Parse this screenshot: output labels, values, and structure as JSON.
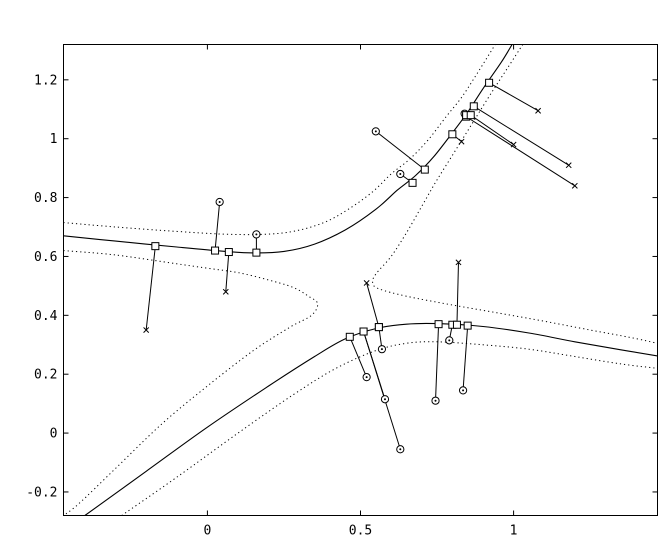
{
  "chart_data": {
    "type": "scatter",
    "title": "",
    "xlabel": "",
    "ylabel": "",
    "xlim": [
      -0.47,
      1.47
    ],
    "ylim": [
      -0.28,
      1.32
    ],
    "xticks": [
      0,
      0.5,
      1
    ],
    "xtick_labels": [
      "0",
      "0.5",
      "1"
    ],
    "yticks": [
      -0.2,
      0,
      0.2,
      0.4,
      0.6,
      0.8,
      1,
      1.2
    ],
    "ytick_labels": [
      "-0.2",
      "0",
      "0.2",
      "0.4",
      "0.6",
      "0.8",
      "1",
      "1.2"
    ],
    "grid": false,
    "curves": {
      "upper": [
        [
          -0.47,
          0.67
        ],
        [
          -0.3,
          0.652
        ],
        [
          -0.1,
          0.632
        ],
        [
          0.05,
          0.618
        ],
        [
          0.15,
          0.612
        ],
        [
          0.25,
          0.617
        ],
        [
          0.35,
          0.642
        ],
        [
          0.45,
          0.69
        ],
        [
          0.55,
          0.76
        ],
        [
          0.62,
          0.825
        ],
        [
          0.68,
          0.875
        ],
        [
          0.74,
          0.94
        ],
        [
          0.8,
          1.02
        ],
        [
          0.85,
          1.09
        ],
        [
          0.9,
          1.17
        ],
        [
          0.96,
          1.26
        ],
        [
          0.995,
          1.32
        ]
      ],
      "lower": [
        [
          -0.4,
          -0.28
        ],
        [
          -0.2,
          -0.13
        ],
        [
          0.0,
          0.02
        ],
        [
          0.2,
          0.16
        ],
        [
          0.35,
          0.26
        ],
        [
          0.45,
          0.32
        ],
        [
          0.55,
          0.355
        ],
        [
          0.65,
          0.37
        ],
        [
          0.75,
          0.372
        ],
        [
          0.9,
          0.362
        ],
        [
          1.05,
          0.34
        ],
        [
          1.2,
          0.31
        ],
        [
          1.35,
          0.283
        ],
        [
          1.47,
          0.262
        ]
      ],
      "bound_upper_outer": [
        [
          -0.47,
          0.715
        ],
        [
          -0.3,
          0.7
        ],
        [
          -0.1,
          0.685
        ],
        [
          0.05,
          0.676
        ],
        [
          0.18,
          0.675
        ],
        [
          0.28,
          0.685
        ],
        [
          0.38,
          0.715
        ],
        [
          0.46,
          0.76
        ],
        [
          0.54,
          0.82
        ],
        [
          0.6,
          0.88
        ],
        [
          0.66,
          0.93
        ],
        [
          0.72,
          0.995
        ],
        [
          0.78,
          1.075
        ],
        [
          0.83,
          1.14
        ],
        [
          0.88,
          1.22
        ],
        [
          0.94,
          1.32
        ]
      ],
      "bound_upper_inner": [
        [
          -0.47,
          0.62
        ],
        [
          -0.3,
          0.605
        ],
        [
          -0.1,
          0.575
        ],
        [
          0.0,
          0.56
        ],
        [
          0.1,
          0.545
        ],
        [
          0.2,
          0.52
        ],
        [
          0.28,
          0.495
        ],
        [
          0.33,
          0.465
        ],
        [
          0.36,
          0.44
        ],
        [
          0.34,
          0.4
        ],
        [
          0.27,
          0.36
        ],
        [
          0.15,
          0.28
        ],
        [
          0.0,
          0.16
        ],
        [
          -0.15,
          0.03
        ],
        [
          -0.3,
          -0.12
        ],
        [
          -0.42,
          -0.24
        ],
        [
          -0.47,
          -0.28
        ]
      ],
      "bound_right_inner": [
        [
          1.03,
          1.32
        ],
        [
          0.98,
          1.24
        ],
        [
          0.93,
          1.16
        ],
        [
          0.87,
          1.06
        ],
        [
          0.81,
          0.96
        ],
        [
          0.75,
          0.86
        ],
        [
          0.7,
          0.77
        ],
        [
          0.65,
          0.68
        ],
        [
          0.6,
          0.6
        ],
        [
          0.55,
          0.54
        ],
        [
          0.54,
          0.51
        ],
        [
          0.56,
          0.49
        ],
        [
          0.65,
          0.465
        ],
        [
          0.8,
          0.435
        ],
        [
          0.95,
          0.408
        ],
        [
          1.1,
          0.38
        ],
        [
          1.25,
          0.35
        ],
        [
          1.38,
          0.325
        ],
        [
          1.47,
          0.305
        ]
      ],
      "bound_lower_outer": [
        [
          -0.28,
          -0.28
        ],
        [
          -0.1,
          -0.15
        ],
        [
          0.1,
          0.0
        ],
        [
          0.28,
          0.13
        ],
        [
          0.42,
          0.22
        ],
        [
          0.55,
          0.28
        ],
        [
          0.65,
          0.305
        ],
        [
          0.75,
          0.31
        ],
        [
          0.9,
          0.3
        ],
        [
          1.05,
          0.285
        ],
        [
          1.2,
          0.26
        ],
        [
          1.35,
          0.235
        ],
        [
          1.47,
          0.22
        ]
      ]
    },
    "pairs": [
      {
        "fit": [
          -0.17,
          0.635
        ],
        "obs": [
          -0.2,
          0.35
        ],
        "marker": "x"
      },
      {
        "fit": [
          0.025,
          0.62
        ],
        "obs": [
          0.04,
          0.785
        ],
        "marker": "o"
      },
      {
        "fit": [
          0.07,
          0.615
        ],
        "obs": [
          0.06,
          0.48
        ],
        "marker": "x"
      },
      {
        "fit": [
          0.16,
          0.613
        ],
        "obs": [
          0.16,
          0.675
        ],
        "marker": "o"
      },
      {
        "fit": [
          0.67,
          0.85
        ],
        "obs": [
          0.63,
          0.88
        ],
        "marker": "o"
      },
      {
        "fit": [
          0.71,
          0.895
        ],
        "obs": [
          0.55,
          1.025
        ],
        "marker": "o"
      },
      {
        "fit": [
          0.8,
          1.015
        ],
        "obs": [
          0.83,
          0.99
        ],
        "marker": "x"
      },
      {
        "fit": [
          0.845,
          1.075
        ],
        "obs": [
          1.2,
          0.84
        ],
        "marker": "x"
      },
      {
        "fit": [
          0.845,
          1.08
        ],
        "obs": [
          0.84,
          1.085
        ],
        "marker": "o"
      },
      {
        "fit": [
          0.86,
          1.08
        ],
        "obs": [
          1.0,
          0.98
        ],
        "marker": "x"
      },
      {
        "fit": [
          0.87,
          1.11
        ],
        "obs": [
          1.18,
          0.91
        ],
        "marker": "x"
      },
      {
        "fit": [
          0.92,
          1.19
        ],
        "obs": [
          1.08,
          1.095
        ],
        "marker": "x"
      },
      {
        "fit": [
          0.465,
          0.327
        ],
        "obs": [
          0.52,
          0.19
        ],
        "marker": "o"
      },
      {
        "fit": [
          0.51,
          0.345
        ],
        "obs": [
          0.58,
          0.115
        ],
        "marker": "o"
      },
      {
        "fit": [
          0.51,
          0.345
        ],
        "obs": [
          0.63,
          -0.055
        ],
        "marker": "o"
      },
      {
        "fit": [
          0.56,
          0.36
        ],
        "obs": [
          0.52,
          0.51
        ],
        "marker": "x"
      },
      {
        "fit": [
          0.56,
          0.36
        ],
        "obs": [
          0.57,
          0.285
        ],
        "marker": "o"
      },
      {
        "fit": [
          0.755,
          0.37
        ],
        "obs": [
          0.745,
          0.11
        ],
        "marker": "o"
      },
      {
        "fit": [
          0.8,
          0.368
        ],
        "obs": [
          0.79,
          0.315
        ],
        "marker": "o"
      },
      {
        "fit": [
          0.815,
          0.368
        ],
        "obs": [
          0.82,
          0.58
        ],
        "marker": "x"
      },
      {
        "fit": [
          0.85,
          0.365
        ],
        "obs": [
          0.835,
          0.145
        ],
        "marker": "o"
      }
    ]
  }
}
